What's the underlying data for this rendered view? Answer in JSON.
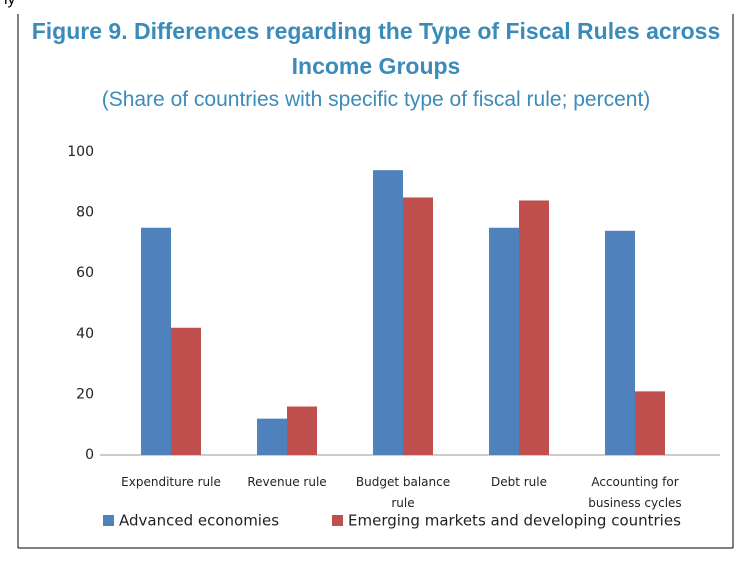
{
  "fragment": "ly",
  "chart_data": {
    "type": "bar",
    "title": "Figure 9. Differences regarding the Type of Fiscal Rules across Income Groups",
    "subtitle": "(Share of countries with specific type of fiscal rule; percent)",
    "categories": [
      "Expenditure rule",
      "Revenue rule",
      "Budget balance rule",
      "Debt rule",
      "Accounting for business cycles"
    ],
    "series": [
      {
        "name": "Advanced economies",
        "color": "#4f81bd",
        "values": [
          75,
          12,
          94,
          75,
          74
        ]
      },
      {
        "name": "Emerging markets and developing countries",
        "color": "#c0504d",
        "values": [
          42,
          16,
          85,
          84,
          21
        ]
      }
    ],
    "ylim": [
      0,
      100
    ],
    "yticks": [
      0,
      20,
      40,
      60,
      80,
      100
    ],
    "grid": false,
    "legend": "bottom"
  }
}
